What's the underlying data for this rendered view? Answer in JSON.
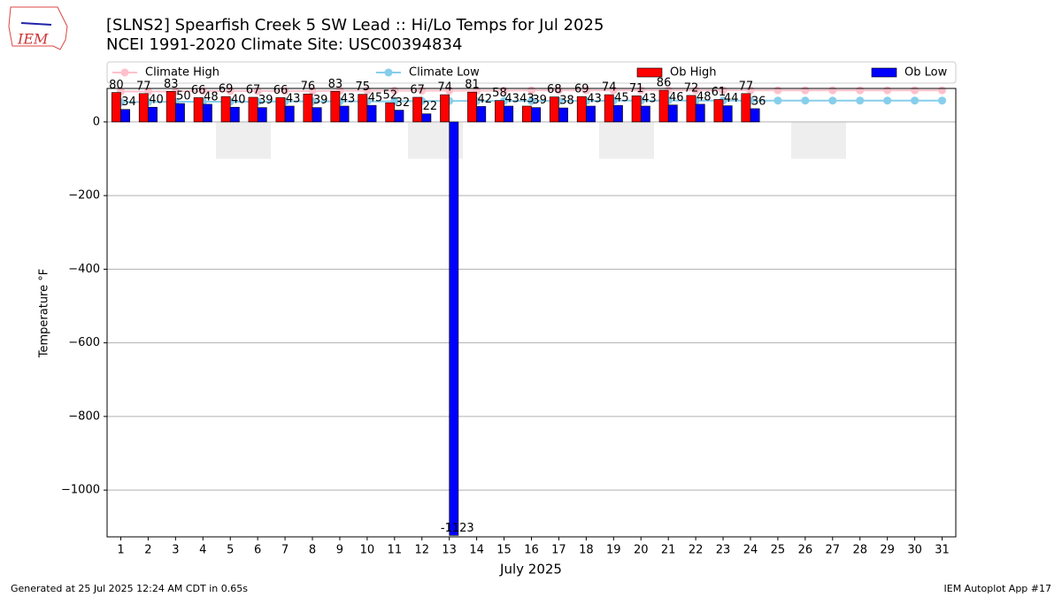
{
  "chart_data": {
    "type": "bar",
    "title": "[SLNS2] Spearfish Creek 5 SW Lead :: Hi/Lo Temps for Jul 2025",
    "subtitle": "NCEI 1991-2020 Climate Site: USC00394834",
    "xlabel": "July 2025",
    "ylabel": "Temperature °F",
    "footer_left": "Generated at 25 Jul 2025 12:24 AM CDT in 0.65s",
    "footer_right": "IEM Autoplot App #17",
    "logo": "IEM",
    "categories": [
      "1",
      "2",
      "3",
      "4",
      "5",
      "6",
      "7",
      "8",
      "9",
      "10",
      "11",
      "12",
      "13",
      "14",
      "15",
      "16",
      "17",
      "18",
      "19",
      "20",
      "21",
      "22",
      "23",
      "24",
      "25",
      "26",
      "27",
      "28",
      "29",
      "30",
      "31"
    ],
    "series": [
      {
        "name": "Climate High",
        "type": "line",
        "color": "#ffc0cb",
        "values": [
          83,
          83,
          83,
          84,
          84,
          84,
          84,
          84,
          85,
          85,
          85,
          85,
          85,
          85,
          85,
          86,
          86,
          86,
          86,
          86,
          86,
          86,
          86,
          86,
          86,
          86,
          86,
          86,
          86,
          86,
          86
        ]
      },
      {
        "name": "Climate Low",
        "type": "line",
        "color": "#87ceeb",
        "values": [
          54,
          54,
          55,
          55,
          55,
          55,
          56,
          56,
          56,
          56,
          56,
          57,
          57,
          57,
          57,
          57,
          57,
          57,
          58,
          58,
          58,
          58,
          58,
          58,
          58,
          58,
          58,
          58,
          58,
          58,
          58
        ]
      },
      {
        "name": "Ob High",
        "type": "bar",
        "color": "#ff0000",
        "values": [
          80,
          77,
          83,
          66,
          69,
          67,
          66,
          76,
          83,
          75,
          52,
          67,
          74,
          81,
          58,
          43,
          68,
          69,
          74,
          71,
          86,
          72,
          61,
          77,
          null,
          null,
          null,
          null,
          null,
          null,
          null
        ]
      },
      {
        "name": "Ob Low",
        "type": "bar",
        "color": "#0000ff",
        "values": [
          34,
          40,
          50,
          48,
          40,
          39,
          43,
          39,
          43,
          45,
          32,
          22,
          -1123,
          42,
          43,
          39,
          38,
          43,
          45,
          43,
          46,
          48,
          44,
          36,
          null,
          null,
          null,
          null,
          null,
          null,
          null
        ]
      }
    ],
    "ylim": [
      -1127,
      91
    ],
    "yticks": [
      0,
      {
        "value": -200,
        "label": "−200"
      },
      {
        "value": -400,
        "label": "−400"
      },
      {
        "value": -600,
        "label": "−600"
      },
      {
        "value": -800,
        "label": "−800"
      },
      {
        "value": -1000,
        "label": "−1000"
      }
    ],
    "grid": true,
    "legend": "top"
  }
}
